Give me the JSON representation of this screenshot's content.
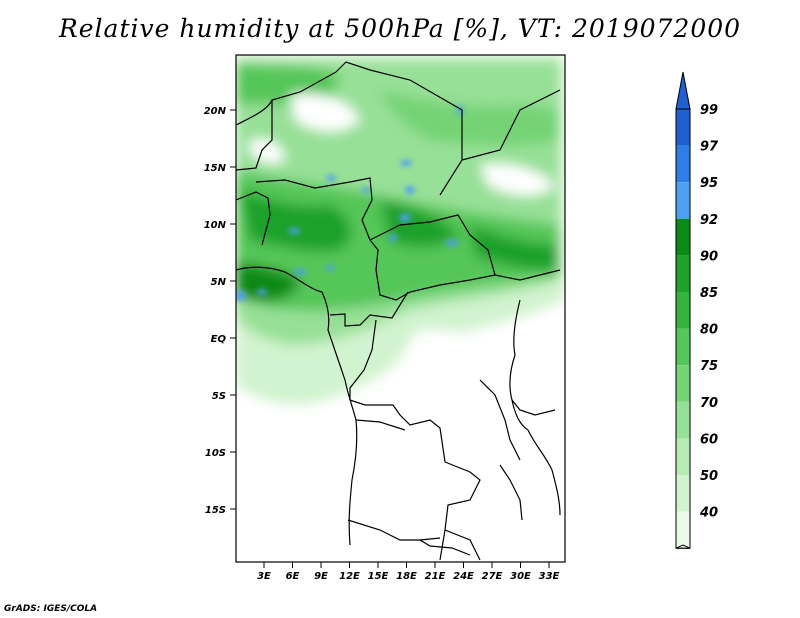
{
  "title": "Relative humidity at 500hPa [%], VT: 2019072000",
  "credit": "GrADS: IGES/COLA",
  "map": {
    "lat_labels": [
      "20N",
      "15N",
      "10N",
      "5N",
      "EQ",
      "5S",
      "10S",
      "15S"
    ],
    "lon_labels": [
      "3E",
      "6E",
      "9E",
      "12E",
      "15E",
      "18E",
      "21E",
      "24E",
      "27E",
      "30E",
      "33E"
    ]
  },
  "colorbar": {
    "labels": [
      "99",
      "97",
      "95",
      "92",
      "90",
      "85",
      "80",
      "75",
      "70",
      "60",
      "50",
      "40"
    ],
    "colors": [
      "#1f5fcf",
      "#2f7ee6",
      "#4f9ff0",
      "#0b8a18",
      "#1fa12c",
      "#36b23f",
      "#55c659",
      "#74d375",
      "#97e097",
      "#b6ebb4",
      "#d2f3cf",
      "#ebfae8"
    ],
    "top_arrow_color": "#1f5fcf",
    "bottom_arrow_color": "#ffffff"
  }
}
